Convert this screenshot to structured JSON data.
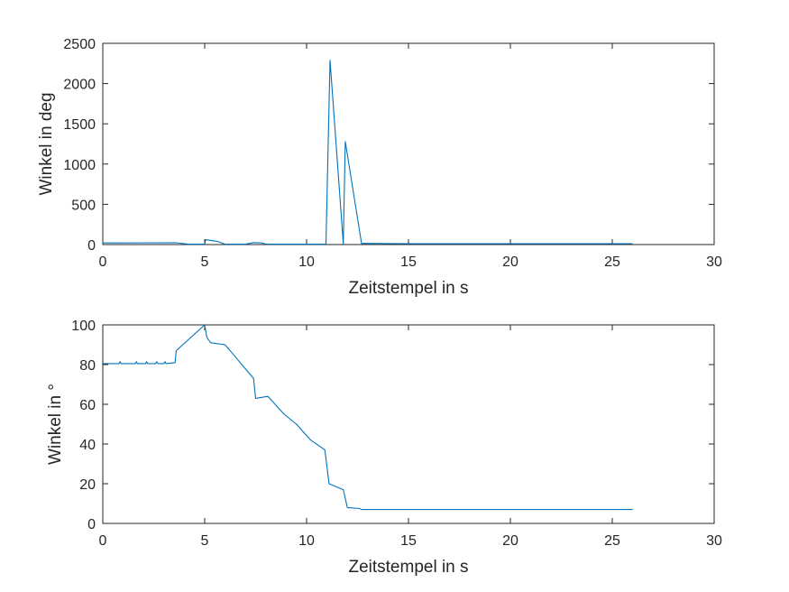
{
  "chart_data": [
    {
      "type": "line",
      "title": "",
      "xlabel": "Zeitstempel in s",
      "ylabel": "Winkel in deg",
      "xlim": [
        0,
        30
      ],
      "ylim": [
        0,
        2500
      ],
      "xticks": [
        0,
        5,
        10,
        15,
        20,
        25,
        30
      ],
      "yticks": [
        0,
        500,
        1000,
        1500,
        2000,
        2500
      ],
      "grid": false,
      "line_color": "#0072BD",
      "series": [
        {
          "x": [
            0,
            3.6,
            4.2,
            5.0,
            5.05,
            5.6,
            6.0,
            7.0,
            7.4,
            7.8,
            8.0,
            9.0,
            10.0,
            10.95,
            11.15,
            11.8,
            11.9,
            12.0,
            12.7,
            12.8,
            15,
            20,
            25,
            26
          ],
          "y": [
            20,
            22,
            5,
            5,
            60,
            40,
            5,
            5,
            25,
            20,
            5,
            5,
            5,
            5,
            2290,
            10,
            1280,
            1120,
            10,
            15,
            10,
            10,
            10,
            10
          ]
        }
      ]
    },
    {
      "type": "line",
      "title": "",
      "xlabel": "Zeitstempel in s",
      "ylabel": "Winkel in °",
      "xlim": [
        0,
        30
      ],
      "ylim": [
        0,
        100
      ],
      "xticks": [
        0,
        5,
        10,
        15,
        20,
        25,
        30
      ],
      "yticks": [
        0,
        20,
        40,
        60,
        80,
        100
      ],
      "grid": false,
      "line_color": "#0072BD",
      "series": [
        {
          "x": [
            0,
            0.8,
            0.85,
            0.9,
            1.6,
            1.65,
            1.7,
            2.1,
            2.15,
            2.2,
            2.6,
            2.65,
            2.7,
            3.0,
            3.05,
            3.1,
            3.55,
            3.6,
            5.0,
            5.1,
            5.15,
            5.3,
            6.0,
            7.4,
            7.5,
            8.1,
            8.9,
            9.5,
            10.2,
            10.9,
            11.1,
            11.8,
            12.0,
            12.6,
            12.7,
            26
          ],
          "y": [
            80.5,
            80.5,
            81.5,
            80.5,
            80.5,
            81.5,
            80.5,
            80.5,
            81.5,
            80.5,
            80.5,
            81.5,
            80.5,
            80.5,
            81.5,
            80.5,
            81,
            87,
            100,
            94,
            93,
            91,
            90,
            73,
            63,
            64,
            55,
            50,
            42,
            37,
            20,
            17,
            8,
            7.5,
            7,
            7
          ]
        }
      ]
    }
  ]
}
